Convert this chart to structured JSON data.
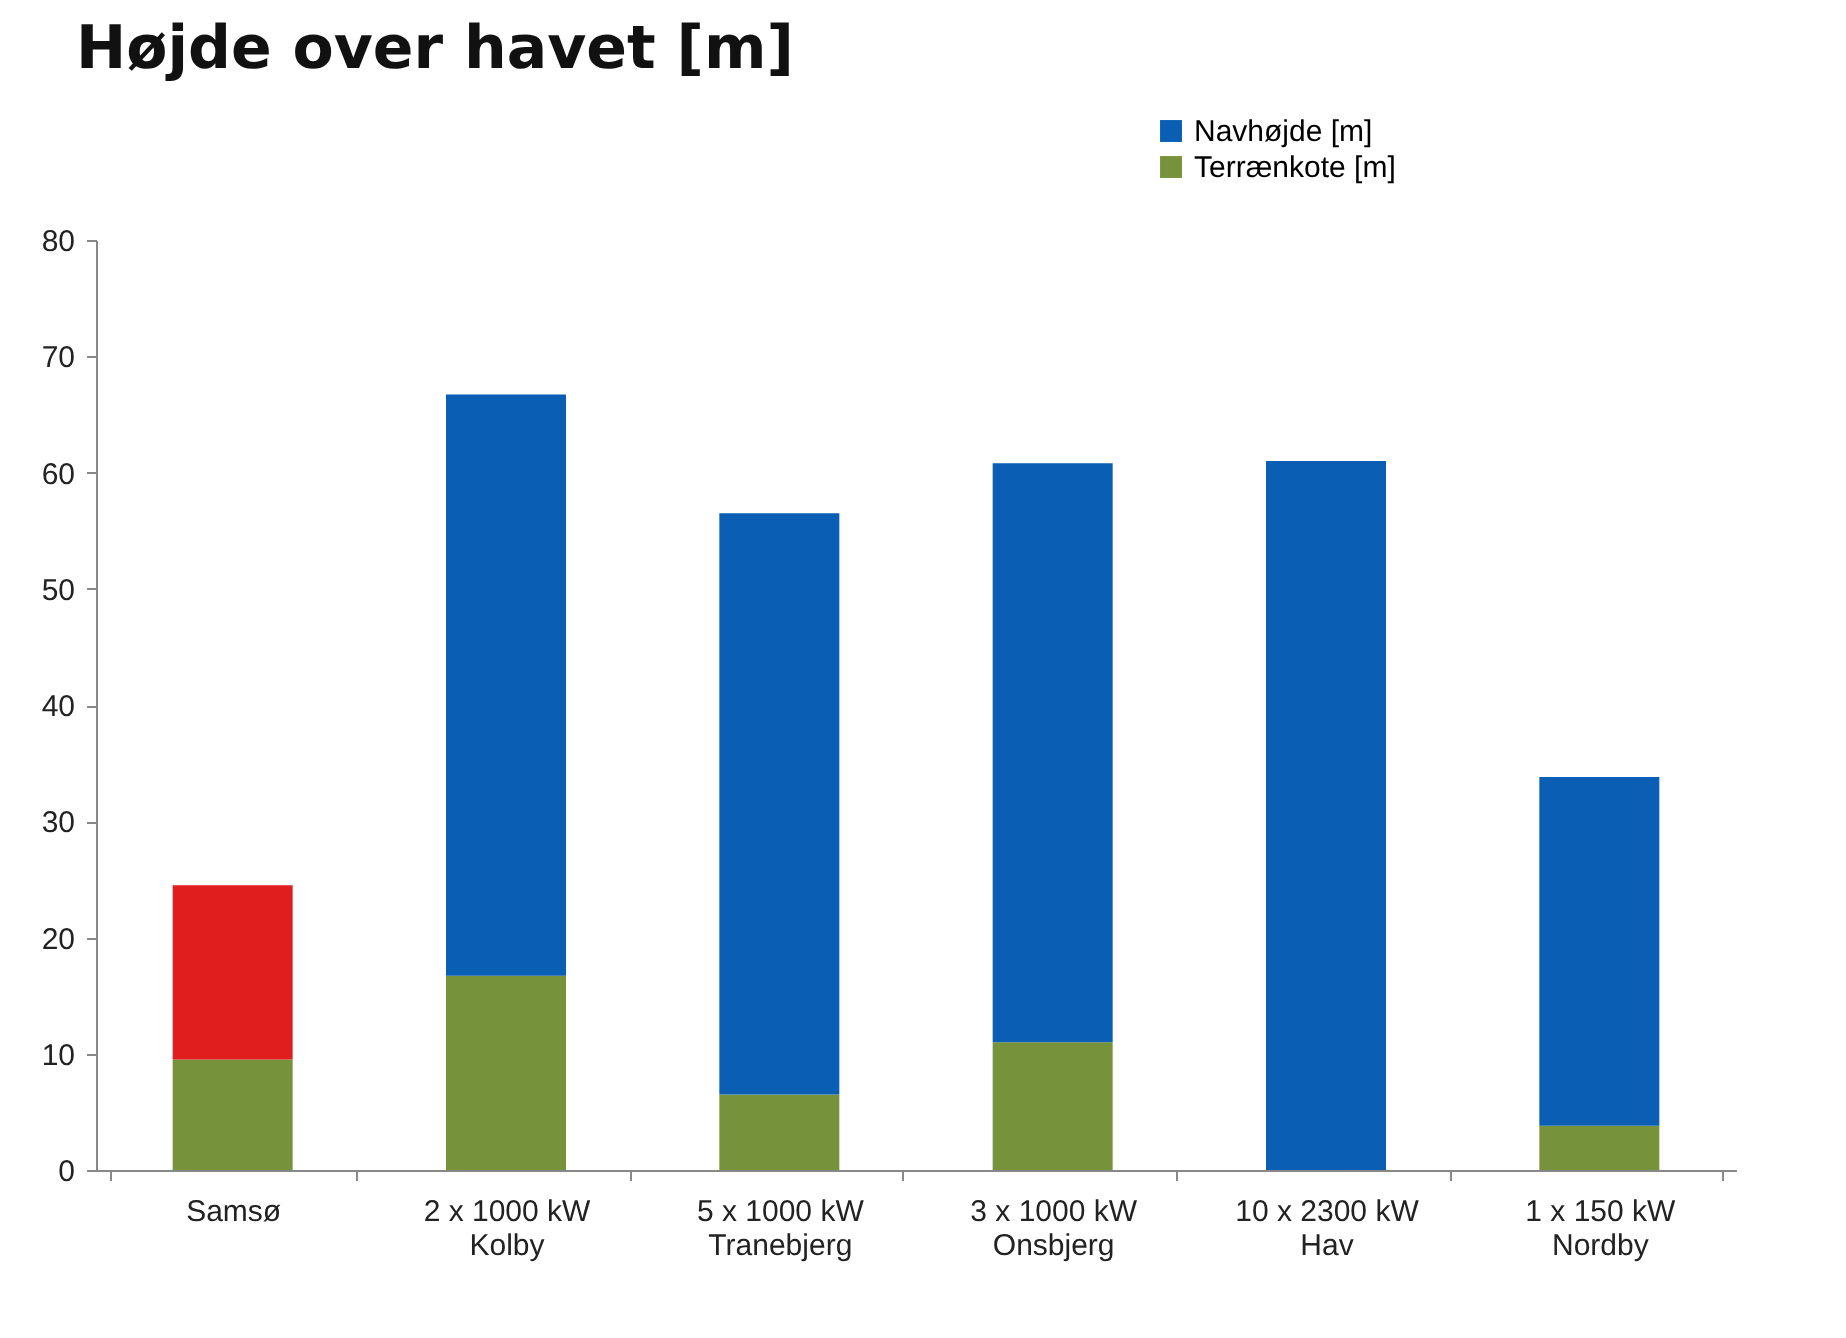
{
  "chart_data": {
    "type": "bar",
    "title": "Højde over havet [m]",
    "stacked": true,
    "legend": "top right",
    "grid": false,
    "categories": [
      "Samsø",
      "2 x 1000 kW Kolby",
      "5 x 1000 kW Tranebjerg",
      "3 x 1000 kW Onsbjerg",
      "10 x 2300 kW Hav",
      "1 x 150 kW Nordby"
    ],
    "series": [
      {
        "name": "Terrænkote [m]",
        "color": "#76933c",
        "values": [
          9.5,
          16.7,
          6.5,
          11,
          0,
          3.8
        ]
      },
      {
        "name": "Navhøjde [m]",
        "color": "#0a5fb4",
        "colors": [
          "#e01e1e",
          "#0a5fb4",
          "#0a5fb4",
          "#0a5fb4",
          "#0a5fb4",
          "#0a5fb4"
        ],
        "values": [
          15,
          50,
          50,
          49.8,
          61,
          30
        ]
      }
    ],
    "ylim": [
      0,
      80
    ],
    "yticks": [
      0,
      10,
      20,
      30,
      40,
      50,
      60,
      70,
      80
    ]
  }
}
